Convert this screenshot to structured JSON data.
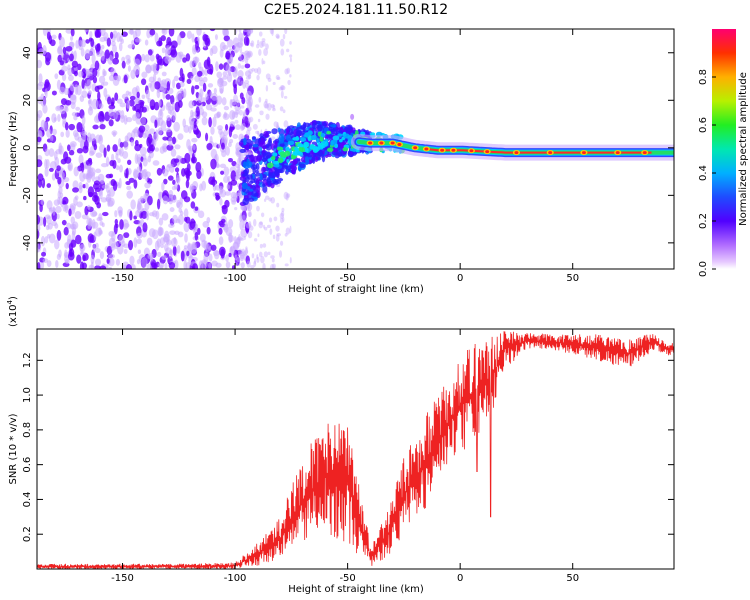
{
  "chart_data": [
    {
      "type": "heatmap",
      "title": "C2E5.2024.181.11.50.R12",
      "xlabel": "Height of straight line (km)",
      "ylabel": "Frequency (Hz)",
      "xlim": [
        -188,
        95
      ],
      "ylim": [
        -51,
        50
      ],
      "xticks": [
        -150,
        -100,
        -50,
        0,
        50
      ],
      "yticks": [
        -40,
        -20,
        0,
        20,
        40
      ],
      "grid": false,
      "colorbar": {
        "label": "Normalized spectral amplitude",
        "range": [
          0,
          1
        ],
        "ticks": [
          "0.0",
          "0.2",
          "0.4",
          "0.6",
          "0.8"
        ],
        "colormap": "rainbow (violet to red)"
      },
      "ridge": [
        {
          "x": -95,
          "y": -10
        },
        {
          "x": -80,
          "y": -3
        },
        {
          "x": -65,
          "y": 3
        },
        {
          "x": -50,
          "y": 3
        },
        {
          "x": -40,
          "y": 2
        },
        {
          "x": -30,
          "y": 2
        },
        {
          "x": -20,
          "y": 0
        },
        {
          "x": -10,
          "y": -1
        },
        {
          "x": 0,
          "y": -1
        },
        {
          "x": 20,
          "y": -2
        },
        {
          "x": 50,
          "y": -2
        },
        {
          "x": 85,
          "y": -2
        }
      ],
      "colors": {
        "noise": "#6a00ff",
        "noise_light": "#c8a8ff",
        "ridge_core": "#ff2a2a",
        "ridge_mid": "#22dd66",
        "ridge_edge": "#1f3cff"
      }
    },
    {
      "type": "line",
      "title": "",
      "xlabel": "Height of straight line (km)",
      "ylabel": "SNR (10 * v/v)",
      "y_multiplier_label": "(x10",
      "y_multiplier_exp": "4",
      "xlim": [
        -188,
        95
      ],
      "ylim": [
        0,
        13800
      ],
      "xticks": [
        -150,
        -100,
        -50,
        0,
        50
      ],
      "yticks": [
        2000,
        4000,
        6000,
        8000,
        10000,
        12000
      ],
      "ytick_labels": [
        "0.2",
        "0.4",
        "0.6",
        "0.8",
        "1.0",
        "1.2"
      ],
      "grid": false,
      "line_color": "#ee2222",
      "envelope": [
        {
          "x": -188,
          "lo": 0,
          "hi": 300
        },
        {
          "x": -120,
          "lo": 0,
          "hi": 300
        },
        {
          "x": -100,
          "lo": 0,
          "hi": 400
        },
        {
          "x": -90,
          "lo": 200,
          "hi": 1500
        },
        {
          "x": -80,
          "lo": 500,
          "hi": 3000
        },
        {
          "x": -70,
          "lo": 1500,
          "hi": 6500
        },
        {
          "x": -60,
          "lo": 2000,
          "hi": 8500
        },
        {
          "x": -50,
          "lo": 1500,
          "hi": 8500
        },
        {
          "x": -45,
          "lo": 600,
          "hi": 5000
        },
        {
          "x": -40,
          "lo": 100,
          "hi": 1500
        },
        {
          "x": -33,
          "lo": 500,
          "hi": 3000
        },
        {
          "x": -25,
          "lo": 2000,
          "hi": 6500
        },
        {
          "x": -15,
          "lo": 3500,
          "hi": 9000
        },
        {
          "x": -5,
          "lo": 6000,
          "hi": 11000
        },
        {
          "x": 5,
          "lo": 7000,
          "hi": 13000
        },
        {
          "x": 15,
          "lo": 9000,
          "hi": 13500
        },
        {
          "x": 20,
          "lo": 11500,
          "hi": 13800
        },
        {
          "x": 30,
          "lo": 12700,
          "hi": 13600
        },
        {
          "x": 45,
          "lo": 12500,
          "hi": 13500
        },
        {
          "x": 60,
          "lo": 12000,
          "hi": 13500
        },
        {
          "x": 75,
          "lo": 11500,
          "hi": 13200
        },
        {
          "x": 85,
          "lo": 12500,
          "hi": 13600
        },
        {
          "x": 95,
          "lo": 12200,
          "hi": 13000
        }
      ],
      "dips": [
        {
          "x": 13.5,
          "y": 3000
        },
        {
          "x": 7.5,
          "y": 5600
        },
        {
          "x": -40,
          "y": 500
        }
      ]
    }
  ]
}
